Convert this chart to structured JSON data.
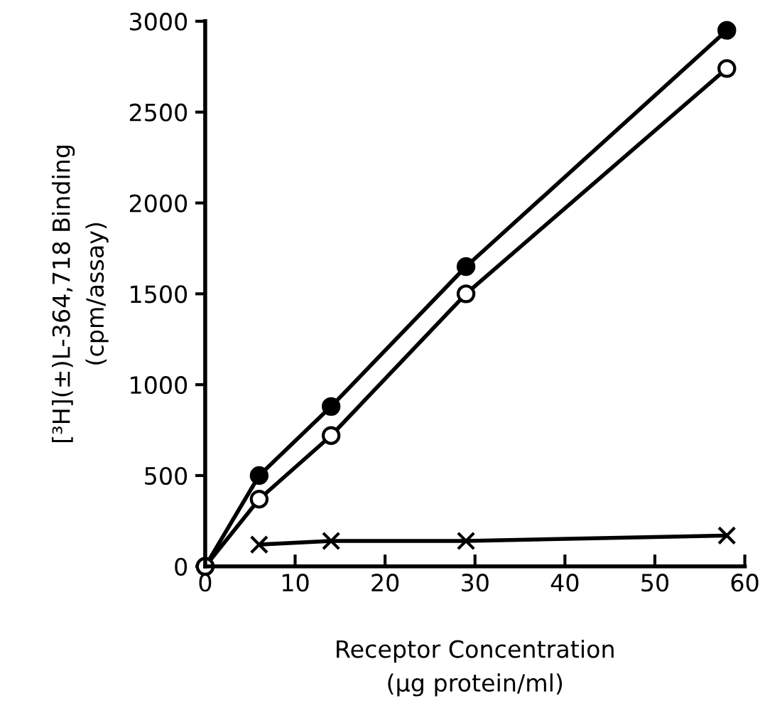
{
  "chart_data": {
    "type": "line",
    "xlabel": "Receptor Concentration\n(μg protein/ml)",
    "ylabel": "[³H](±)L-364,718 Binding\n(cpm/assay)",
    "x": [
      0,
      6,
      14,
      29,
      58
    ],
    "series": [
      {
        "color": "#000000",
        "marker": "circle",
        "values": [
          0,
          500,
          880,
          1650,
          2950
        ]
      },
      {
        "color": "#000000",
        "marker": "circle",
        "values": [
          0,
          370,
          720,
          1500,
          2740
        ]
      },
      {
        "color": "#000000",
        "marker": "cross",
        "x": [
          6,
          14,
          29,
          58
        ],
        "values": [
          120,
          140,
          140,
          170
        ]
      }
    ],
    "xlim": [
      0,
      60
    ],
    "xticks": [
      0,
      10,
      20,
      30,
      40,
      50,
      60
    ],
    "ylim": [
      0,
      3000
    ],
    "yticks": [
      0,
      500,
      1000,
      1500,
      2000,
      2500,
      3000
    ],
    "grid": false,
    "legend": false,
    "line_style": "solid"
  }
}
